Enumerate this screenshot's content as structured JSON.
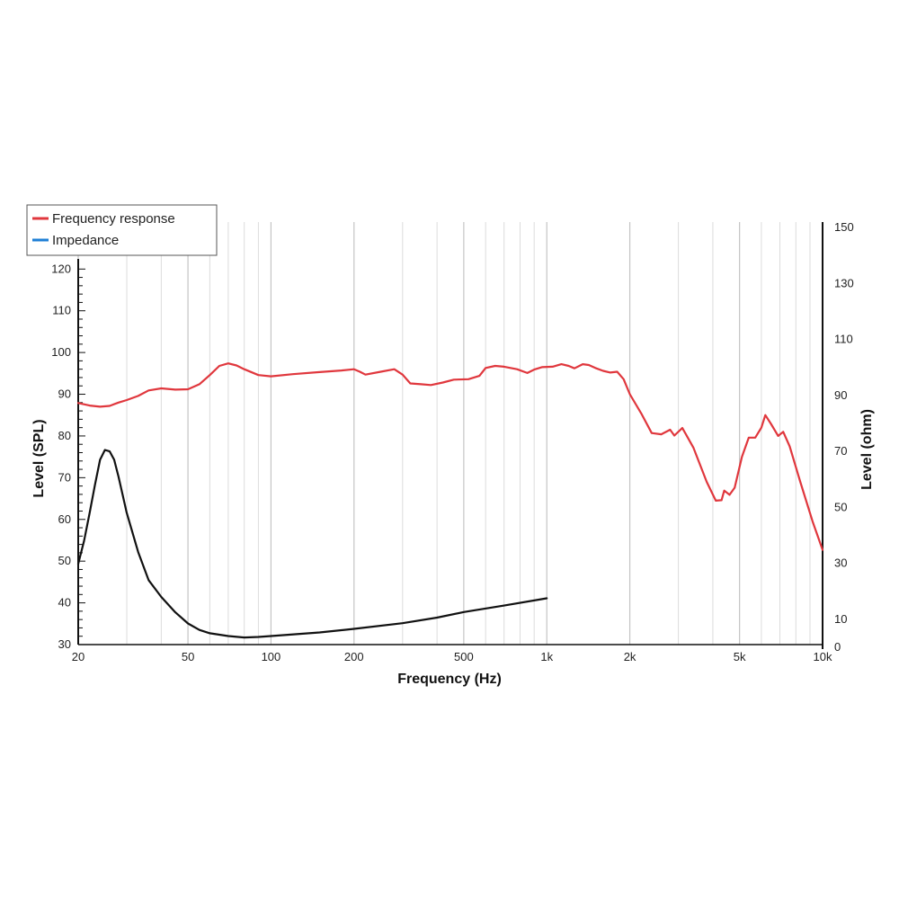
{
  "chart_data": {
    "type": "line",
    "title": "",
    "xlabel": "Frequency (Hz)",
    "ylabel": "Level (SPL)",
    "y2label": "Level (ohm)",
    "x_scale": "log",
    "xlim": [
      20,
      10000
    ],
    "ylim": [
      30,
      122
    ],
    "y2lim": [
      0,
      150
    ],
    "grid": "vertical",
    "legend_position": "top-left",
    "x_ticks": [
      {
        "value": 20,
        "label": "20"
      },
      {
        "value": 50,
        "label": "50"
      },
      {
        "value": 100,
        "label": "100"
      },
      {
        "value": 200,
        "label": "200"
      },
      {
        "value": 500,
        "label": "500"
      },
      {
        "value": 1000,
        "label": "1k"
      },
      {
        "value": 2000,
        "label": "2k"
      },
      {
        "value": 5000,
        "label": "5k"
      },
      {
        "value": 10000,
        "label": "10k"
      }
    ],
    "y_ticks": [
      30,
      40,
      50,
      60,
      70,
      80,
      90,
      100,
      110,
      120
    ],
    "y2_ticks": [
      0,
      10,
      30,
      50,
      70,
      90,
      110,
      130,
      150
    ],
    "series": [
      {
        "name": "Frequency response",
        "color": "#e0373d",
        "axis": "left",
        "points": [
          [
            20,
            87.9
          ],
          [
            22,
            87.3
          ],
          [
            24,
            87.0
          ],
          [
            26,
            87.2
          ],
          [
            28,
            88.0
          ],
          [
            30,
            88.6
          ],
          [
            33,
            89.6
          ],
          [
            36,
            90.9
          ],
          [
            40,
            91.4
          ],
          [
            45,
            91.1
          ],
          [
            50,
            91.2
          ],
          [
            55,
            92.4
          ],
          [
            60,
            94.6
          ],
          [
            65,
            96.8
          ],
          [
            70,
            97.4
          ],
          [
            75,
            96.9
          ],
          [
            80,
            96.0
          ],
          [
            90,
            94.6
          ],
          [
            100,
            94.3
          ],
          [
            120,
            94.8
          ],
          [
            150,
            95.3
          ],
          [
            180,
            95.7
          ],
          [
            200,
            96.0
          ],
          [
            210,
            95.4
          ],
          [
            220,
            94.7
          ],
          [
            250,
            95.4
          ],
          [
            280,
            96.0
          ],
          [
            300,
            94.7
          ],
          [
            320,
            92.6
          ],
          [
            350,
            92.4
          ],
          [
            380,
            92.2
          ],
          [
            420,
            92.8
          ],
          [
            460,
            93.5
          ],
          [
            520,
            93.6
          ],
          [
            570,
            94.4
          ],
          [
            600,
            96.3
          ],
          [
            650,
            96.8
          ],
          [
            700,
            96.6
          ],
          [
            780,
            96.0
          ],
          [
            850,
            95.1
          ],
          [
            900,
            95.9
          ],
          [
            960,
            96.5
          ],
          [
            1050,
            96.6
          ],
          [
            1130,
            97.2
          ],
          [
            1200,
            96.8
          ],
          [
            1260,
            96.2
          ],
          [
            1350,
            97.2
          ],
          [
            1420,
            97.0
          ],
          [
            1500,
            96.3
          ],
          [
            1600,
            95.6
          ],
          [
            1700,
            95.2
          ],
          [
            1800,
            95.4
          ],
          [
            1900,
            93.6
          ],
          [
            2000,
            90.0
          ],
          [
            2200,
            85.4
          ],
          [
            2400,
            80.7
          ],
          [
            2600,
            80.4
          ],
          [
            2800,
            81.5
          ],
          [
            2900,
            80.1
          ],
          [
            3100,
            81.9
          ],
          [
            3400,
            77.2
          ],
          [
            3800,
            69.0
          ],
          [
            4100,
            64.5
          ],
          [
            4300,
            64.6
          ],
          [
            4400,
            66.9
          ],
          [
            4600,
            65.9
          ],
          [
            4800,
            67.6
          ],
          [
            5100,
            75.0
          ],
          [
            5400,
            79.6
          ],
          [
            5700,
            79.6
          ],
          [
            6000,
            82.0
          ],
          [
            6200,
            85.0
          ],
          [
            6500,
            82.9
          ],
          [
            6900,
            80.0
          ],
          [
            7200,
            81.0
          ],
          [
            7600,
            77.5
          ],
          [
            8300,
            69.0
          ],
          [
            9200,
            59.5
          ],
          [
            10000,
            52.7
          ]
        ]
      },
      {
        "name": "Impedance",
        "color": "#111111",
        "axis": "right",
        "points": [
          [
            20,
            29.8
          ],
          [
            21,
            38
          ],
          [
            22,
            48
          ],
          [
            23,
            58
          ],
          [
            24,
            67
          ],
          [
            25,
            70.5
          ],
          [
            26,
            70
          ],
          [
            27,
            67
          ],
          [
            28,
            61
          ],
          [
            30,
            48
          ],
          [
            33,
            34
          ],
          [
            36,
            24
          ],
          [
            40,
            18
          ],
          [
            45,
            12.5
          ],
          [
            50,
            8.5
          ],
          [
            55,
            6.2
          ],
          [
            60,
            5.0
          ],
          [
            70,
            4.0
          ],
          [
            80,
            3.5
          ],
          [
            90,
            3.7
          ],
          [
            100,
            4.0
          ],
          [
            150,
            5.3
          ],
          [
            200,
            6.6
          ],
          [
            300,
            8.6
          ],
          [
            400,
            10.6
          ],
          [
            500,
            12.6
          ],
          [
            700,
            14.9
          ],
          [
            1000,
            17.5
          ]
        ]
      }
    ]
  }
}
